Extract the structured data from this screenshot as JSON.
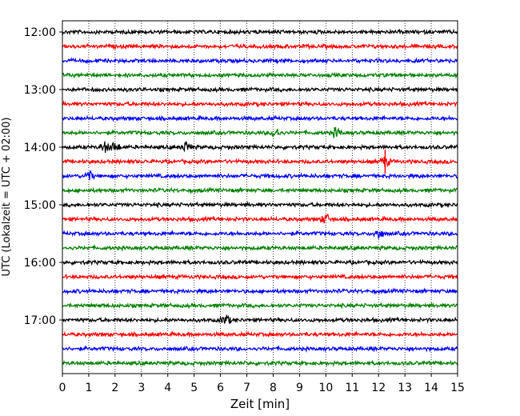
{
  "chart_data": {
    "type": "line",
    "title": "",
    "xlabel": "Zeit  [min]",
    "ylabel": "UTC (Lokalzeit = UTC + 02:00)",
    "xlim": [
      0,
      15
    ],
    "x_ticks": [
      "0",
      "1",
      "2",
      "3",
      "4",
      "5",
      "6",
      "7",
      "8",
      "9",
      "10",
      "11",
      "12",
      "13",
      "14",
      "15"
    ],
    "y_ticks": [
      "12:00",
      "13:00",
      "14:00",
      "15:00",
      "16:00",
      "17:00"
    ],
    "grid": "vertical dotted at each minute",
    "legend": "none",
    "colors_cycle": [
      "#000000",
      "#ff0000",
      "#0000ff",
      "#008000"
    ],
    "rows": [
      {
        "start": "12:00",
        "color": "#000000",
        "events": []
      },
      {
        "start": "12:15",
        "color": "#ff0000",
        "events": []
      },
      {
        "start": "12:30",
        "color": "#0000ff",
        "events": []
      },
      {
        "start": "12:45",
        "color": "#008000",
        "events": []
      },
      {
        "start": "13:00",
        "color": "#000000",
        "events": []
      },
      {
        "start": "13:15",
        "color": "#ff0000",
        "events": []
      },
      {
        "start": "13:30",
        "color": "#0000ff",
        "events": []
      },
      {
        "start": "13:45",
        "color": "#008000",
        "events": [
          8.1,
          10.4
        ]
      },
      {
        "start": "14:00",
        "color": "#000000",
        "events": [
          1.6,
          2.0,
          4.7
        ]
      },
      {
        "start": "14:15",
        "color": "#ff0000",
        "events": [
          12.25
        ]
      },
      {
        "start": "14:30",
        "color": "#0000ff",
        "events": [
          1.0
        ]
      },
      {
        "start": "14:45",
        "color": "#008000",
        "events": []
      },
      {
        "start": "15:00",
        "color": "#000000",
        "events": []
      },
      {
        "start": "15:15",
        "color": "#ff0000",
        "events": [
          10.0
        ]
      },
      {
        "start": "15:30",
        "color": "#0000ff",
        "events": [
          12.0
        ]
      },
      {
        "start": "15:45",
        "color": "#008000",
        "events": []
      },
      {
        "start": "16:00",
        "color": "#000000",
        "events": []
      },
      {
        "start": "16:15",
        "color": "#ff0000",
        "events": []
      },
      {
        "start": "16:30",
        "color": "#0000ff",
        "events": []
      },
      {
        "start": "16:45",
        "color": "#008000",
        "events": []
      },
      {
        "start": "17:00",
        "color": "#000000",
        "events": [
          6.2
        ]
      },
      {
        "start": "17:15",
        "color": "#ff0000",
        "events": []
      },
      {
        "start": "17:30",
        "color": "#0000ff",
        "events": []
      },
      {
        "start": "17:45",
        "color": "#008000",
        "events": []
      }
    ]
  }
}
